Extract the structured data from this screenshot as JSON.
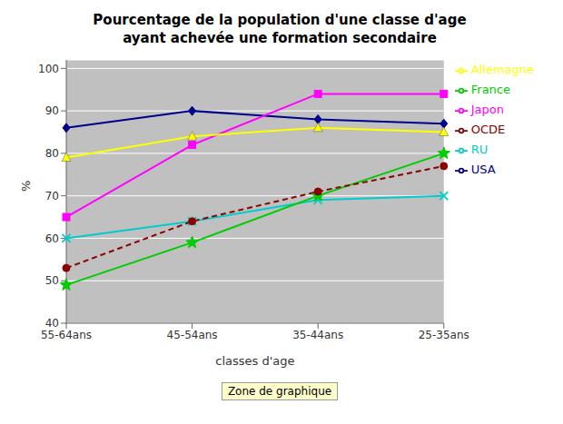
{
  "chart_data": {
    "type": "line",
    "title": "Pourcentage de la population d'une classe d'age\nayant achevée une formation secondaire",
    "xlabel": "classes d'age",
    "ylabel": "%",
    "categories": [
      "55-64ans",
      "45-54ans",
      "35-44ans",
      "25-35ans"
    ],
    "ylim": [
      40,
      102
    ],
    "yticks": [
      40,
      50,
      60,
      70,
      80,
      90,
      100
    ],
    "grid": true,
    "legend": "right",
    "annotations": [
      "Zone de graphique"
    ],
    "series": [
      {
        "name": "USA",
        "values": [
          86,
          90,
          88,
          87
        ],
        "color": "#00008B",
        "marker": "diamond",
        "line_style": "solid"
      },
      {
        "name": "Japon",
        "values": [
          65,
          82,
          94,
          94
        ],
        "color": "#FF00FF",
        "marker": "square",
        "line_style": "solid"
      },
      {
        "name": "Allemagne",
        "values": [
          79,
          84,
          86,
          85
        ],
        "color": "#FFFF00",
        "marker": "triangle",
        "line_style": "solid"
      },
      {
        "name": "RU",
        "values": [
          60,
          64,
          69,
          70
        ],
        "color": "#00CCCC",
        "marker": "x",
        "line_style": "solid"
      },
      {
        "name": "France",
        "values": [
          49,
          59,
          70,
          80
        ],
        "color": "#00CC00",
        "marker": "star",
        "line_style": "solid"
      },
      {
        "name": "OCDE",
        "values": [
          53,
          64,
          71,
          77
        ],
        "color": "#8B0000",
        "marker": "circle",
        "line_style": "dashed"
      }
    ]
  }
}
